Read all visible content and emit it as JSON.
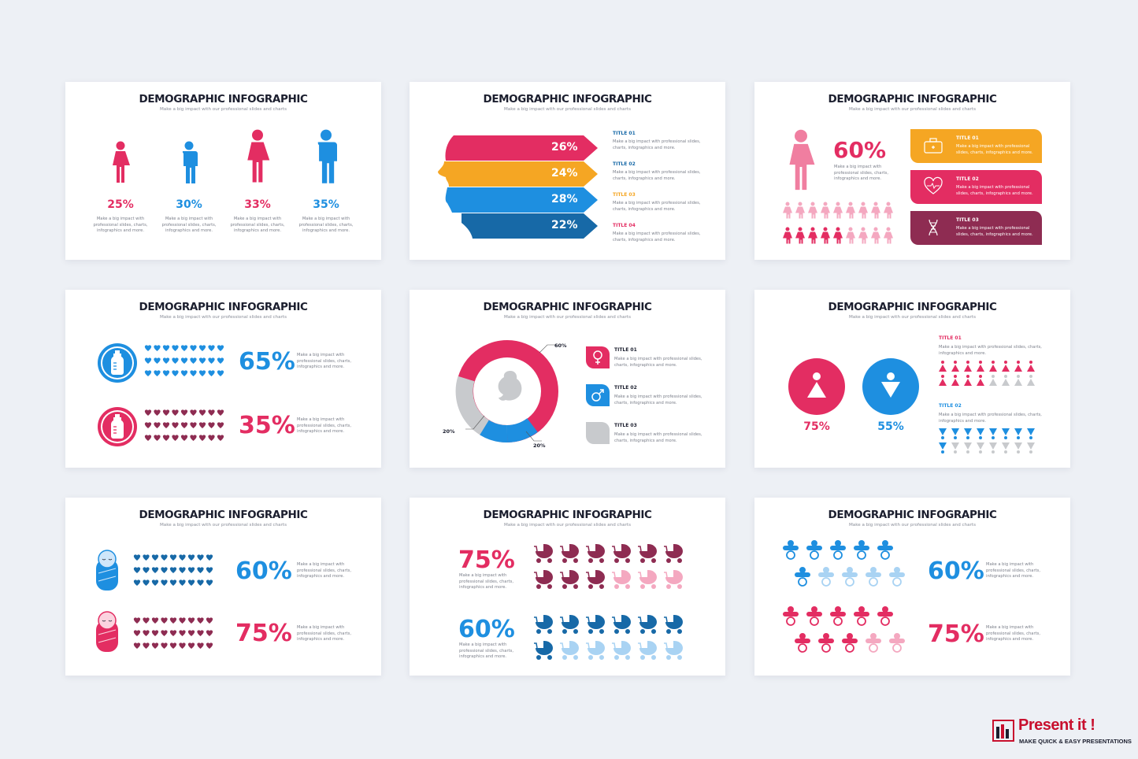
{
  "common": {
    "title": "DEMOGRAPHIC INFOGRAPHIC",
    "subtitle": "Make a big impact with our professional slides and charts"
  },
  "colors": {
    "pink": "#e32d62",
    "blue": "#1e8fe0",
    "amber": "#f5a623",
    "navy": "#1769a7",
    "plum": "#8e2c52",
    "gray": "#c8cacd",
    "lightpink": "#f4a8c0",
    "lightblue": "#a9d3f3"
  },
  "s1": {
    "items": [
      {
        "pct": "25%",
        "text": [
          "Make a big impact with",
          "professional slides, charts,",
          "infographics and more."
        ]
      },
      {
        "pct": "30%",
        "text": [
          "Make a big impact with",
          "professional slides, charts,",
          "infographics and more."
        ]
      },
      {
        "pct": "33%",
        "text": [
          "Make a big impact with",
          "professional slides, charts,",
          "infographics and more."
        ]
      },
      {
        "pct": "35%",
        "text": [
          "Make a big impact with",
          "professional slides, charts,",
          "infographics and more."
        ]
      }
    ]
  },
  "s2": {
    "bars": [
      "26%",
      "24%",
      "28%",
      "22%"
    ],
    "items": [
      {
        "title": "TITLE 01",
        "text": [
          "Make a big impact with professional slides,",
          "charts, infographics and more."
        ]
      },
      {
        "title": "TITLE 02",
        "text": [
          "Make a big impact with professional slides,",
          "charts, infographics and more."
        ]
      },
      {
        "title": "TITLE 03",
        "text": [
          "Make a big impact with professional slides,",
          "charts, infographics and more."
        ]
      },
      {
        "title": "TITLE 04",
        "text": [
          "Make a big impact with professional slides,",
          "charts, infographics and more."
        ]
      }
    ]
  },
  "s3": {
    "pct": "60%",
    "text": [
      "Make a big impact with",
      "professional slides, charts,",
      "infographics and more."
    ],
    "boxes": [
      {
        "title": "TITLE 01",
        "text": [
          "Make a big impact with professional",
          "slides, charts, infographics and more."
        ]
      },
      {
        "title": "TITLE 02",
        "text": [
          "Make a big impact with professional",
          "slides, charts, infographics and more."
        ]
      },
      {
        "title": "TITLE 03",
        "text": [
          "Make a big impact with professional",
          "slides, charts, infographics and more."
        ]
      }
    ]
  },
  "s4": {
    "rows": [
      {
        "pct": "65%",
        "text": [
          "Make a big impact with",
          "professional slides, charts,",
          "infographics and more."
        ]
      },
      {
        "pct": "35%",
        "text": [
          "Make a big impact with",
          "professional slides, charts,",
          "infographics and more."
        ]
      }
    ]
  },
  "s5": {
    "labels": [
      "60%",
      "20%",
      "20%"
    ],
    "items": [
      {
        "title": "TITLE 01",
        "text": [
          "Make a big impact with professional slides,",
          "charts, infographics and more."
        ]
      },
      {
        "title": "TITLE 02",
        "text": [
          "Make a big impact with professional slides,",
          "charts, infographics and more."
        ]
      },
      {
        "title": "TITLE 03",
        "text": [
          "Make a big impact with professional slides,",
          "charts, infographics and more."
        ]
      }
    ]
  },
  "s6": {
    "pcts": [
      "75%",
      "55%"
    ],
    "items": [
      {
        "title": "TITLE 01",
        "text": [
          "Make a big impact with professional slides, charts,",
          "infographics and more."
        ]
      },
      {
        "title": "TITLE 02",
        "text": [
          "Make a big impact with professional slides, charts,",
          "infographics and more."
        ]
      }
    ]
  },
  "s7": {
    "rows": [
      {
        "pct": "60%",
        "text": [
          "Make a big impact with",
          "professional slides, charts,",
          "infographics and more."
        ]
      },
      {
        "pct": "75%",
        "text": [
          "Make a big impact with",
          "professional slides, charts,",
          "infographics and more."
        ]
      }
    ]
  },
  "s8": {
    "rows": [
      {
        "pct": "75%",
        "text": [
          "Make a big impact with",
          "professional slides, charts,",
          "infographics and more."
        ]
      },
      {
        "pct": "60%",
        "text": [
          "Make a big impact with",
          "professional slides, charts,",
          "infographics and more."
        ]
      }
    ]
  },
  "s9": {
    "rows": [
      {
        "pct": "60%",
        "text": [
          "Make a big impact with",
          "professional slides, charts,",
          "infographics and more."
        ]
      },
      {
        "pct": "75%",
        "text": [
          "Make a big impact with",
          "professional slides, charts,",
          "infographics and more."
        ]
      }
    ]
  },
  "brand": {
    "name": "Present it !",
    "tagline": "MAKE QUICK & EASY PRESENTATIONS"
  }
}
